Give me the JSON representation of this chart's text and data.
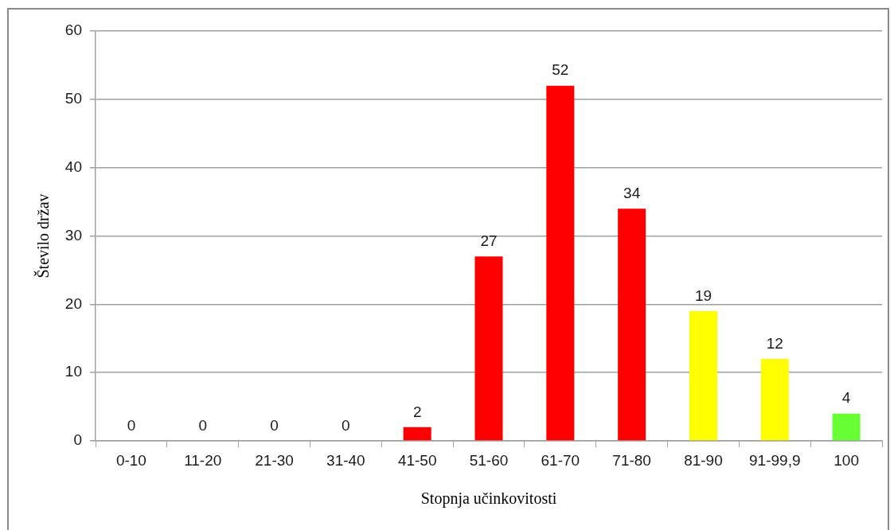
{
  "chart_data": {
    "type": "bar",
    "xlabel": "Stopnja učinkovitosti",
    "ylabel": "Število držav",
    "categories": [
      "0-10",
      "11-20",
      "21-30",
      "31-40",
      "41-50",
      "51-60",
      "61-70",
      "71-80",
      "81-90",
      "91-99,9",
      "100"
    ],
    "values": [
      0,
      0,
      0,
      0,
      2,
      27,
      52,
      34,
      19,
      12,
      4
    ],
    "colors": [
      "#ff0000",
      "#ff0000",
      "#ff0000",
      "#ff0000",
      "#ff0000",
      "#ff0000",
      "#ff0000",
      "#ff0000",
      "#ffff00",
      "#ffff00",
      "#66ff33"
    ],
    "ylim": [
      0,
      60
    ],
    "yticks": [
      0,
      10,
      20,
      30,
      40,
      50,
      60
    ],
    "grid": "y",
    "data_labels": true
  }
}
